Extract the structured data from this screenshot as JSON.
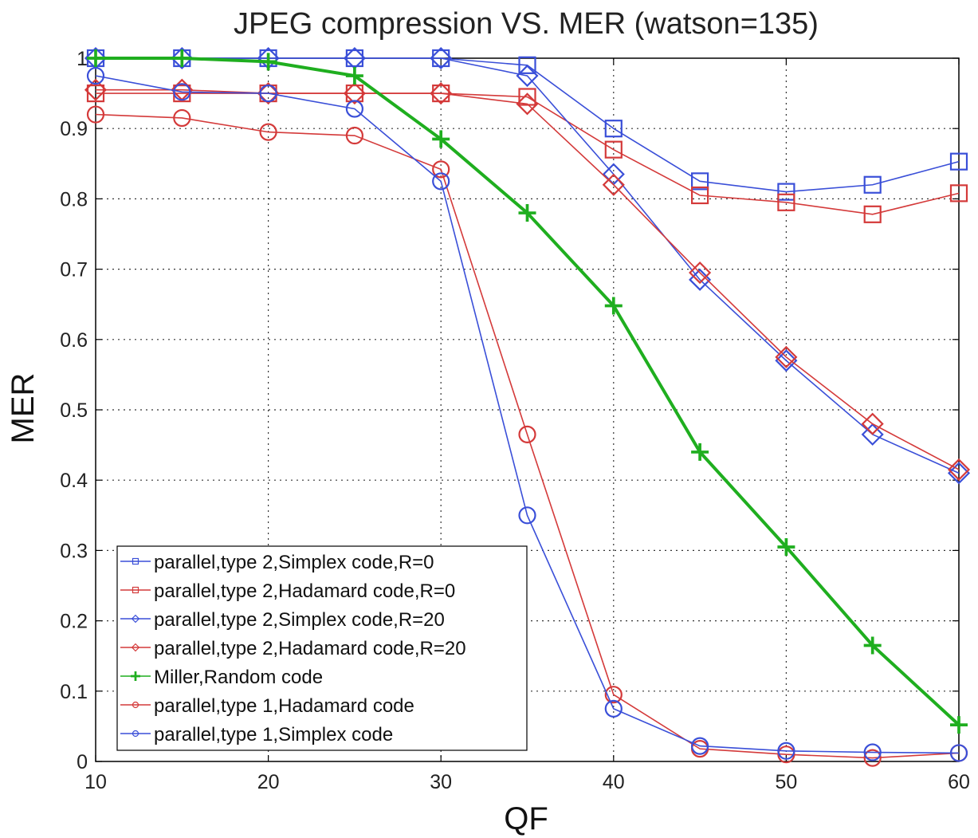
{
  "chart_data": {
    "type": "line",
    "title": "JPEG compression VS. MER (watson=135)",
    "xlabel": "QF",
    "ylabel": "MER",
    "xlim": [
      10,
      60
    ],
    "ylim": [
      0,
      1
    ],
    "xticks": [
      "10",
      "20",
      "30",
      "40",
      "50",
      "60"
    ],
    "yticks": [
      "0",
      "0.1",
      "0.2",
      "0.3",
      "0.4",
      "0.5",
      "0.6",
      "0.7",
      "0.8",
      "0.9",
      "1"
    ],
    "grid": true,
    "legend_position": "bottom-left",
    "x": [
      10,
      15,
      20,
      25,
      30,
      35,
      40,
      45,
      50,
      55,
      60
    ],
    "series": [
      {
        "name": "parallel,type 2,Simplex code,R=0",
        "color": "#3a4fd8",
        "marker": "square",
        "values": [
          1.0,
          1.0,
          1.0,
          1.0,
          1.0,
          0.99,
          0.9,
          0.825,
          0.81,
          0.82,
          0.853
        ]
      },
      {
        "name": "parallel,type 2,Hadamard code,R=0",
        "color": "#d43a3a",
        "marker": "square",
        "values": [
          0.95,
          0.95,
          0.95,
          0.95,
          0.95,
          0.945,
          0.87,
          0.805,
          0.795,
          0.778,
          0.808
        ]
      },
      {
        "name": "parallel,type 2,Simplex code,R=20",
        "color": "#3a4fd8",
        "marker": "diamond",
        "values": [
          1.0,
          1.0,
          1.0,
          1.0,
          1.0,
          0.975,
          0.835,
          0.685,
          0.57,
          0.465,
          0.41
        ]
      },
      {
        "name": "parallel,type 2,Hadamard code,R=20",
        "color": "#d43a3a",
        "marker": "diamond",
        "values": [
          0.955,
          0.955,
          0.95,
          0.95,
          0.95,
          0.935,
          0.82,
          0.695,
          0.575,
          0.48,
          0.415
        ]
      },
      {
        "name": "Miller,Random code",
        "color": "#1fae1f",
        "marker": "plus",
        "values": [
          1.0,
          1.0,
          0.995,
          0.975,
          0.885,
          0.78,
          0.648,
          0.44,
          0.305,
          0.165,
          0.052
        ]
      },
      {
        "name": "parallel,type 1,Hadamard code",
        "color": "#d43a3a",
        "marker": "circle",
        "values": [
          0.92,
          0.915,
          0.895,
          0.89,
          0.842,
          0.465,
          0.095,
          0.018,
          0.01,
          0.005,
          0.012
        ]
      },
      {
        "name": "parallel,type 1,Simplex code",
        "color": "#3a4fd8",
        "marker": "circle",
        "values": [
          0.975,
          0.952,
          0.95,
          0.928,
          0.825,
          0.35,
          0.075,
          0.022,
          0.015,
          0.013,
          0.012
        ]
      }
    ]
  }
}
